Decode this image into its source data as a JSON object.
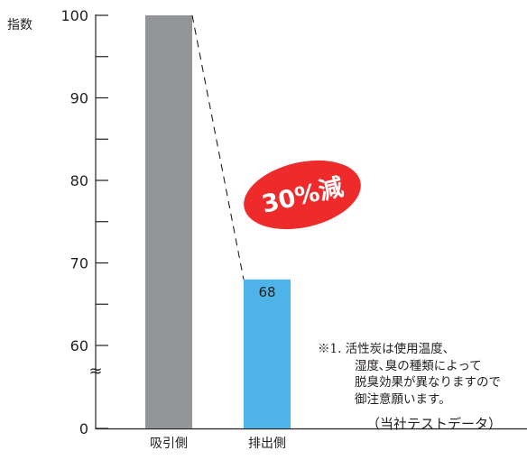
{
  "chart_data": {
    "type": "bar",
    "ylabel": "指数",
    "categories": [
      "吸引側",
      "排出側"
    ],
    "values": [
      100,
      68
    ],
    "data_labels": [
      "",
      "68"
    ],
    "yticks": [
      "0",
      "60",
      "70",
      "80",
      "90",
      "100"
    ],
    "axis_break": "≈",
    "ylim": [
      55,
      100
    ],
    "colors": [
      "#939598",
      "#4eb3e6"
    ],
    "callout": {
      "text": "30%減",
      "color": "#ee2a2a",
      "text_color": "#ffffff"
    },
    "legend": "none",
    "grid": false
  },
  "note": {
    "lines": [
      "※1. 活性炭は使用温度、",
      "湿度､臭の種類によって",
      "脱臭効果が異なりますので",
      "御注意願います。"
    ]
  },
  "source": "（当社テストデータ）"
}
